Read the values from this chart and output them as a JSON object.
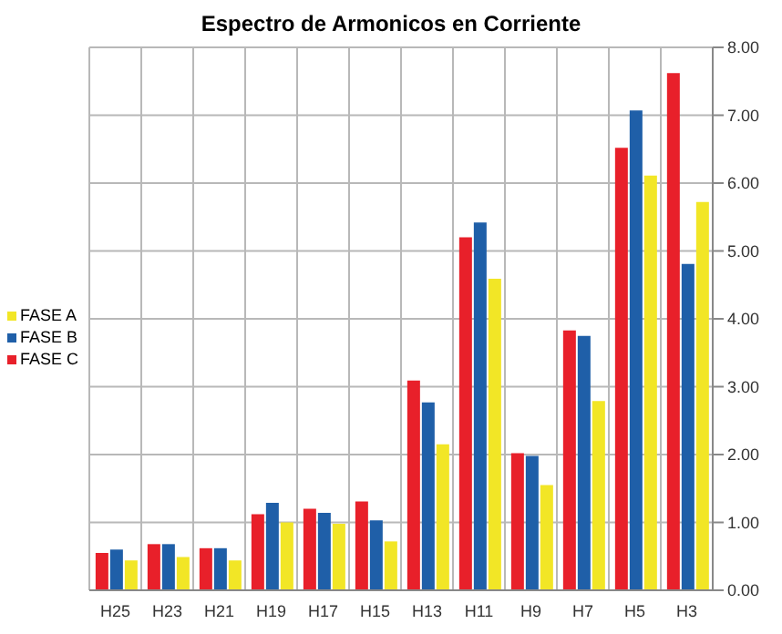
{
  "chart_data": {
    "type": "bar",
    "title": "Espectro de Armonicos en Corriente",
    "categories": [
      "H25",
      "H23",
      "H21",
      "H19",
      "H17",
      "H15",
      "H13",
      "H11",
      "H9",
      "H7",
      "H5",
      "H3"
    ],
    "series": [
      {
        "name": "FASE C",
        "color": "#e8202a",
        "values": [
          0.55,
          0.68,
          0.62,
          1.12,
          1.2,
          1.31,
          3.09,
          5.2,
          2.02,
          3.83,
          6.52,
          7.62
        ]
      },
      {
        "name": "FASE B",
        "color": "#1f5fa8",
        "values": [
          0.6,
          0.68,
          0.62,
          1.29,
          1.14,
          1.03,
          2.77,
          5.42,
          1.98,
          3.75,
          7.07,
          4.81
        ]
      },
      {
        "name": "FASE A",
        "color": "#f2e626",
        "values": [
          0.44,
          0.49,
          0.44,
          1.0,
          0.98,
          0.72,
          2.15,
          4.59,
          1.55,
          2.79,
          6.11,
          5.72
        ]
      }
    ],
    "ylim": [
      0,
      8
    ],
    "yticks": [
      {
        "value": 0,
        "label": "0.00"
      },
      {
        "value": 1,
        "label": "1.00"
      },
      {
        "value": 2,
        "label": "2.00"
      },
      {
        "value": 3,
        "label": "3.00"
      },
      {
        "value": 4,
        "label": "4.00"
      },
      {
        "value": 5,
        "label": "5.00"
      },
      {
        "value": 6,
        "label": "6.00"
      },
      {
        "value": 7,
        "label": "7.00"
      },
      {
        "value": 8,
        "label": "8.00"
      }
    ],
    "grid": true,
    "legend": "left"
  }
}
